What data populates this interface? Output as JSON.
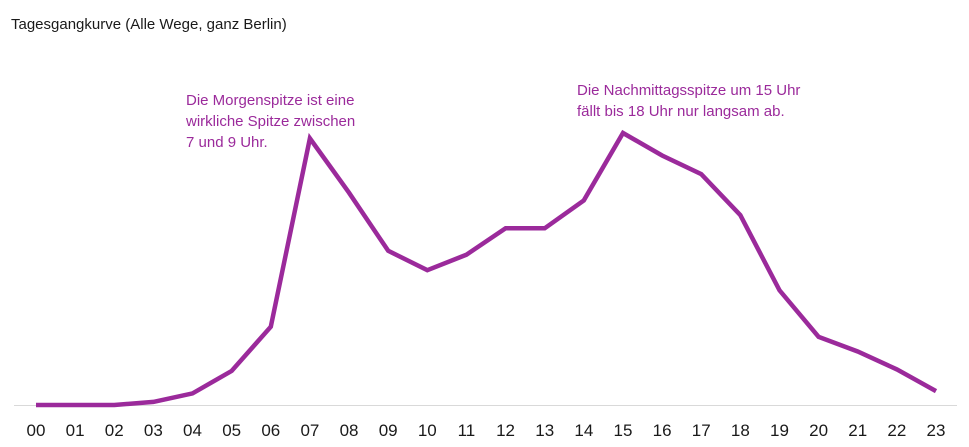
{
  "chart_data": {
    "type": "line",
    "title": "Tagesgangkurve (Alle Wege, ganz Berlin)",
    "xlabel": "",
    "ylabel": "",
    "categories": [
      "00",
      "01",
      "02",
      "03",
      "04",
      "05",
      "06",
      "07",
      "08",
      "09",
      "10",
      "11",
      "12",
      "13",
      "14",
      "15",
      "16",
      "17",
      "18",
      "19",
      "20",
      "21",
      "22",
      "23"
    ],
    "series": [
      {
        "values": [
          0.0,
          0.0,
          0.0,
          0.4,
          1.5,
          4.4,
          10.1,
          34.4,
          27.4,
          19.9,
          17.4,
          19.4,
          22.8,
          22.8,
          26.4,
          35.1,
          32.2,
          29.8,
          24.5,
          14.8,
          8.8,
          6.9,
          4.6,
          1.8
        ]
      }
    ],
    "ylim": [
      0,
      35.1
    ],
    "grid": false,
    "annotations": [
      {
        "text": "Die Morgenspitze ist eine\nwirkliche Spitze zwischen\n7 und 9 Uhr."
      },
      {
        "text": "Die Nachmittagsspitze um 15 Uhr\nfällt bis 18 Uhr nur langsam ab."
      }
    ],
    "colors": {
      "line": "#9b2a9b",
      "annotation": "#9b2a9b",
      "axis": "#d9d9d9",
      "ticks": "#1a1a1a"
    }
  }
}
